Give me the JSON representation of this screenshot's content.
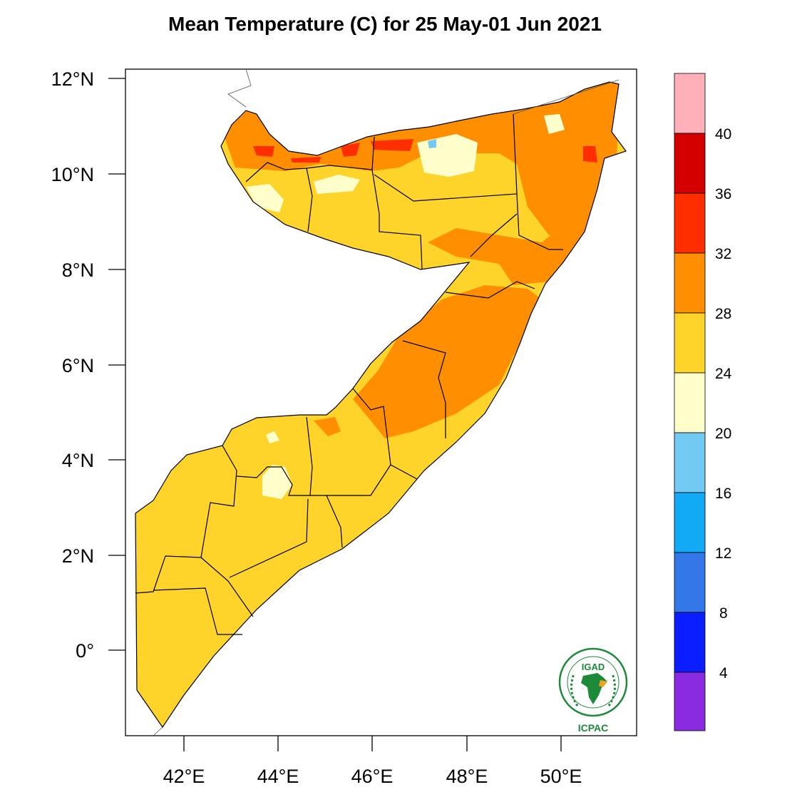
{
  "title": "Mean Temperature (C) for 25 May-01 Jun 2021",
  "lat_labels": [
    "12°N",
    "10°N",
    "8°N",
    "6°N",
    "4°N",
    "2°N",
    "0°"
  ],
  "lon_labels": [
    "42°E",
    "44°E",
    "46°E",
    "48°E",
    "50°E"
  ],
  "colorbar": {
    "colors": [
      "#ffb0b8",
      "#d40000",
      "#ff2e00",
      "#ff8f00",
      "#ffd42a",
      "#ffffcc",
      "#72c9f2",
      "#12aaf5",
      "#3377e8",
      "#0b1eff",
      "#8a2be2"
    ],
    "labels": [
      "40",
      "36",
      "32",
      "28",
      "24",
      "20",
      "16",
      "12",
      "8",
      "4"
    ]
  },
  "logo": {
    "top_text": "IGAD",
    "bottom_text": "ICPAC",
    "ring_text": "INTERGOVERNMENTAL AUTHORITY ON DEVELOPMENT"
  },
  "palette": {
    "t24_28": "#ffd42a",
    "t28_32": "#ff8f00",
    "t32_36": "#ff2e00",
    "t36_40": "#d40000",
    "t20_24": "#ffffcc",
    "t16_20": "#72c9f2",
    "logo_green": "#1d8a3a"
  }
}
